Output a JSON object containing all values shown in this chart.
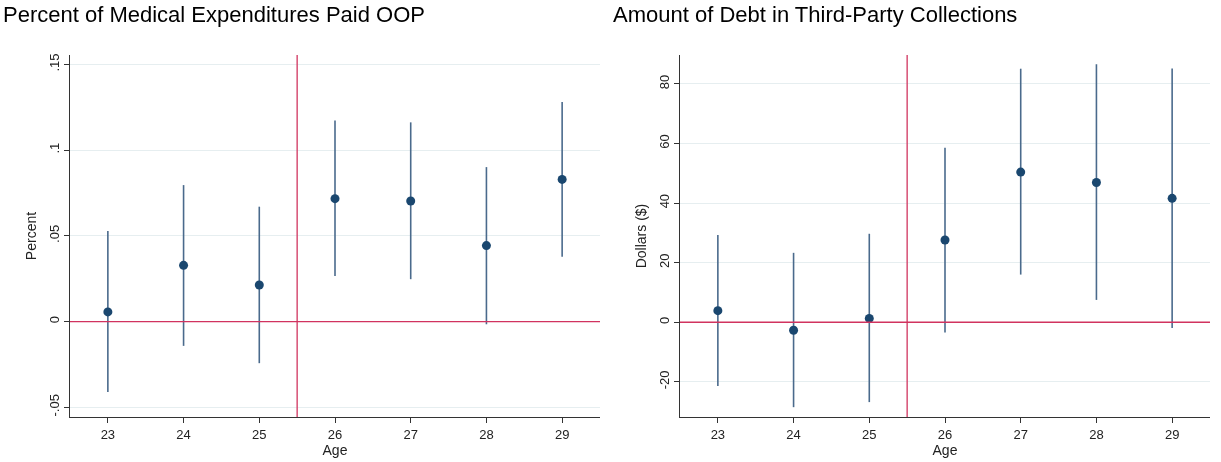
{
  "chart_data": [
    {
      "type": "scatter",
      "title": "Percent of Medical Expenditures Paid OOP",
      "xlabel": "Age",
      "ylabel": "Percent",
      "x": [
        23,
        24,
        25,
        26,
        27,
        28,
        29
      ],
      "series": [
        {
          "color": "#1a476f",
          "values": [
            0.0056,
            0.0328,
            0.0213,
            0.0717,
            0.0703,
            0.0443,
            0.0829
          ],
          "errors": [
            [
              -0.0411,
              0.0528
            ],
            [
              -0.0142,
              0.0796
            ],
            [
              -0.0243,
              0.067
            ],
            [
              0.0265,
              0.1173
            ],
            [
              0.0247,
              0.1162
            ],
            [
              -0.0016,
              0.0901
            ],
            [
              0.0378,
              0.1281
            ]
          ]
        }
      ],
      "xlim": [
        22.5,
        29.5
      ],
      "xticks": [
        23,
        24,
        25,
        26,
        27,
        28,
        29
      ],
      "ylim": [
        -0.0557,
        0.1555
      ],
      "yticks": [
        {
          "value": -0.05,
          "label": "-.05"
        },
        0,
        {
          "value": 0.05,
          "label": ".05"
        },
        {
          "value": 0.1,
          "label": ".1"
        },
        {
          "value": 0.15,
          "label": ".15"
        }
      ],
      "ref_lines": [
        {
          "axis": "y",
          "value": 0,
          "color": "#d1335f"
        },
        {
          "axis": "x",
          "value": 25.5,
          "color": "#d1335f"
        }
      ],
      "grid": "y",
      "marker": "circle"
    },
    {
      "type": "scatter",
      "title": "Amount of Debt in Third-Party Collections",
      "xlabel": "Age",
      "ylabel": "Dollars ($)",
      "x": [
        23,
        24,
        25,
        26,
        27,
        28,
        29
      ],
      "series": [
        {
          "color": "#1a476f",
          "values": [
            3.9,
            -2.7,
            1.3,
            27.6,
            50.4,
            46.9,
            41.6
          ],
          "errors": [
            [
              -21.4,
              29.3
            ],
            [
              -28.5,
              23.3
            ],
            [
              -26.8,
              29.7
            ],
            [
              -3.4,
              58.6
            ],
            [
              16,
              85.1
            ],
            [
              7.5,
              86.6
            ],
            [
              -1.9,
              85.2
            ]
          ]
        }
      ],
      "xlim": [
        22.5,
        29.5
      ],
      "xticks": [
        23,
        24,
        25,
        26,
        27,
        28,
        29
      ],
      "ylim": [
        -31.8,
        89.7
      ],
      "yticks": [
        -20,
        0,
        20,
        40,
        60,
        80
      ],
      "ref_lines": [
        {
          "axis": "y",
          "value": 0,
          "color": "#d1335f"
        },
        {
          "axis": "x",
          "value": 25.5,
          "color": "#d1335f"
        }
      ],
      "grid": "y",
      "marker": "circle"
    }
  ]
}
